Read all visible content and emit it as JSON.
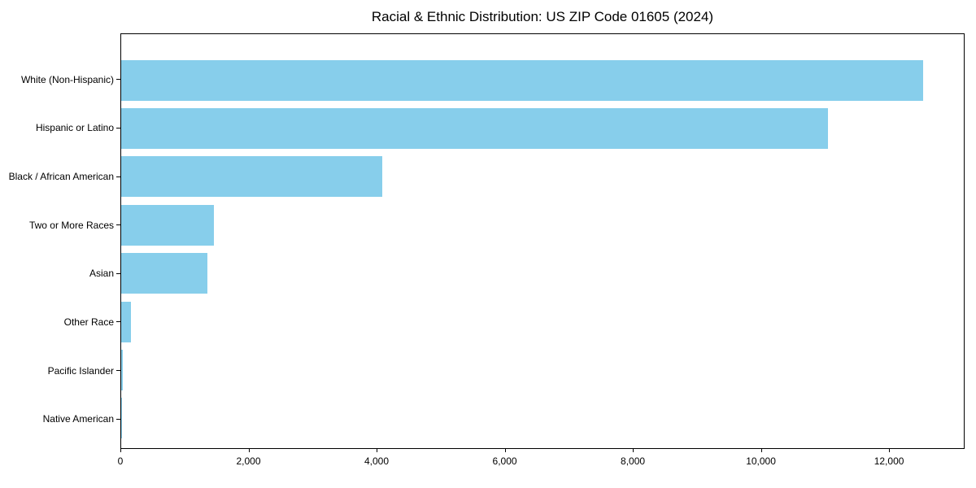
{
  "title": "Racial & Ethnic Distribution: US ZIP Code 01605 (2024)",
  "chart_data": {
    "type": "bar",
    "orientation": "horizontal",
    "title": "Racial & Ethnic Distribution: US ZIP Code 01605 (2024)",
    "xlabel": "",
    "ylabel": "",
    "categories": [
      "White (Non-Hispanic)",
      "Hispanic or Latino",
      "Black / African American",
      "Two or More Races",
      "Asian",
      "Other Race",
      "Pacific Islander",
      "Native American"
    ],
    "values": [
      12550,
      11050,
      4080,
      1450,
      1350,
      150,
      20,
      10
    ],
    "xlim": [
      0,
      13180
    ],
    "xticks": [
      0,
      2000,
      4000,
      6000,
      8000,
      10000,
      12000
    ],
    "xtick_labels": [
      "0",
      "2,000",
      "4,000",
      "6,000",
      "8,000",
      "10,000",
      "12,000"
    ],
    "bar_color": "#87CEEB",
    "spine_color": "#000000",
    "text_color": "#000000",
    "background_color": "#ffffff",
    "grid": false,
    "legend": null
  }
}
